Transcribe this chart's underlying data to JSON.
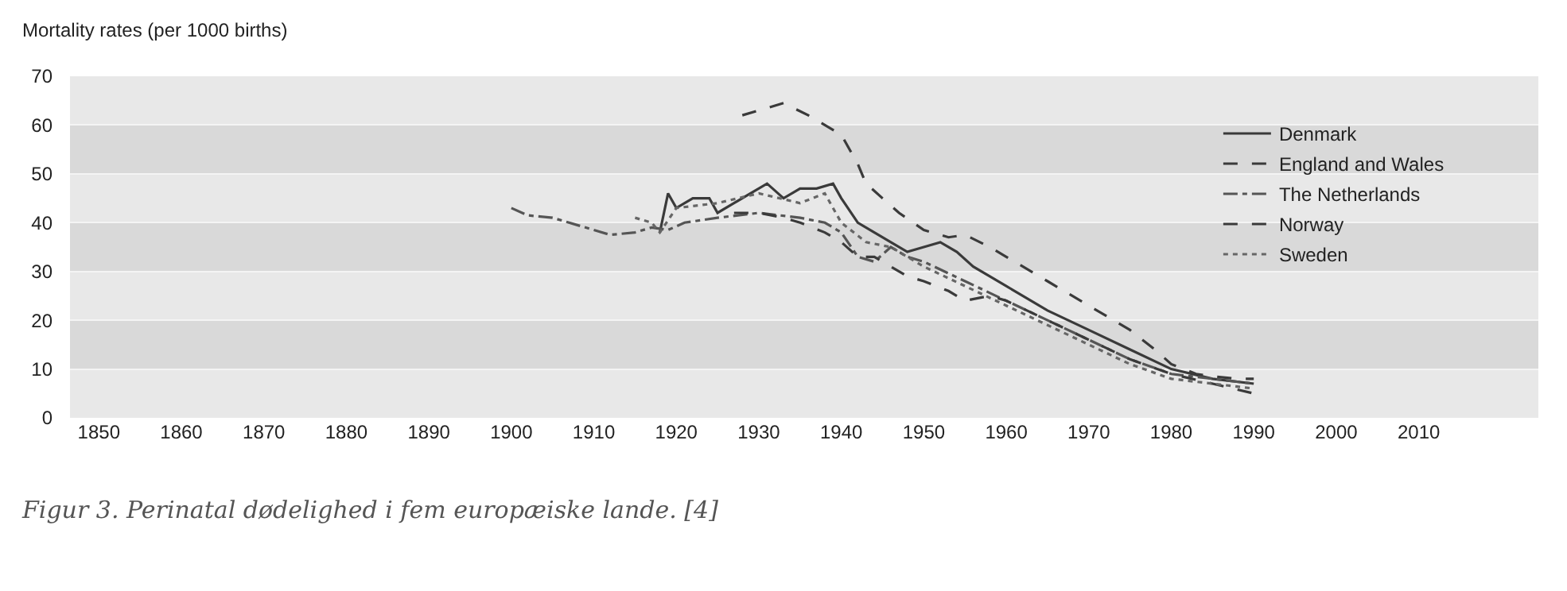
{
  "chart_data": {
    "type": "line",
    "ylabel": "Mortality rates (per 1000 births)",
    "xlim": [
      1846.5,
      2024.5
    ],
    "xticks": [
      1850,
      1860,
      1870,
      1880,
      1890,
      1900,
      1910,
      1920,
      1930,
      1940,
      1950,
      1960,
      1970,
      1980,
      1990,
      2000,
      2010
    ],
    "ylim": [
      0,
      70
    ],
    "yticks": [
      0,
      10,
      20,
      30,
      40,
      50,
      60,
      70
    ],
    "grid": "y",
    "legend": "top right",
    "annotations": [
      "Figur 3. Perinatal dødelighed i fem europæiske lande. [4]"
    ],
    "series": [
      {
        "name": "Denmark",
        "color": "#3a3a3a",
        "line_style": "solid",
        "x": [
          1918,
          1919,
          1920,
          1922,
          1924,
          1925,
          1927,
          1929,
          1931,
          1933,
          1935,
          1937,
          1939,
          1940,
          1942,
          1944,
          1946,
          1948,
          1950,
          1952,
          1954,
          1956,
          1958,
          1960,
          1965,
          1970,
          1975,
          1980,
          1985,
          1990
        ],
        "values": [
          38,
          46,
          43,
          45,
          45,
          42,
          44,
          46,
          48,
          45,
          47,
          47,
          48,
          45,
          40,
          38,
          36,
          34,
          35,
          36,
          34,
          31,
          29,
          27,
          22,
          18,
          14,
          10,
          8,
          7
        ]
      },
      {
        "name": "England and Wales",
        "color": "#3a3a3a",
        "line_style": "dashed",
        "x": [
          1928,
          1930,
          1933,
          1936,
          1938,
          1940,
          1942,
          1943,
          1945,
          1947,
          1950,
          1953,
          1955,
          1958,
          1960,
          1965,
          1970,
          1975,
          1978,
          1980,
          1983,
          1985,
          1988,
          1990
        ],
        "values": [
          62,
          63,
          64.5,
          62,
          60,
          58,
          52,
          48,
          45,
          42,
          38.5,
          37,
          37.5,
          35,
          33,
          28,
          23,
          18,
          14,
          11,
          9,
          8.5,
          8,
          8
        ]
      },
      {
        "name": "The Netherlands",
        "color": "#555555",
        "line_style": "dashdot",
        "x": [
          1900,
          1902,
          1905,
          1908,
          1910,
          1912,
          1915,
          1917,
          1919,
          1921,
          1925,
          1930,
          1935,
          1938,
          1940,
          1942,
          1944,
          1946,
          1948,
          1950,
          1955,
          1960,
          1965,
          1970,
          1975,
          1980,
          1985,
          1990
        ],
        "values": [
          43,
          41.5,
          41,
          39.5,
          38.5,
          37.5,
          38,
          39,
          38.5,
          40,
          41,
          42,
          41,
          40,
          38,
          33,
          32,
          35,
          33,
          32,
          28,
          24,
          20,
          16,
          12,
          9,
          8,
          7
        ]
      },
      {
        "name": "Norway",
        "color": "#3a3a3a",
        "line_style": "dashed",
        "x": [
          1927,
          1930,
          1933,
          1935,
          1938,
          1940,
          1942,
          1944,
          1946,
          1948,
          1950,
          1953,
          1955,
          1958,
          1960,
          1965,
          1970,
          1975,
          1980,
          1985,
          1990
        ],
        "values": [
          42,
          42,
          41,
          40,
          38,
          36,
          33,
          33,
          31,
          29,
          28,
          26,
          24,
          25,
          24,
          20,
          16,
          12,
          9,
          7,
          5
        ]
      },
      {
        "name": "Sweden",
        "color": "#666666",
        "line_style": "dotted",
        "x": [
          1915,
          1917,
          1918,
          1920,
          1925,
          1930,
          1935,
          1938,
          1940,
          1943,
          1946,
          1950,
          1955,
          1960,
          1965,
          1970,
          1975,
          1980,
          1985,
          1990
        ],
        "values": [
          41,
          40,
          38,
          43,
          44,
          46,
          44,
          46,
          40,
          36,
          35,
          31,
          27,
          23,
          19,
          15,
          11,
          8,
          7,
          6
        ]
      }
    ]
  }
}
